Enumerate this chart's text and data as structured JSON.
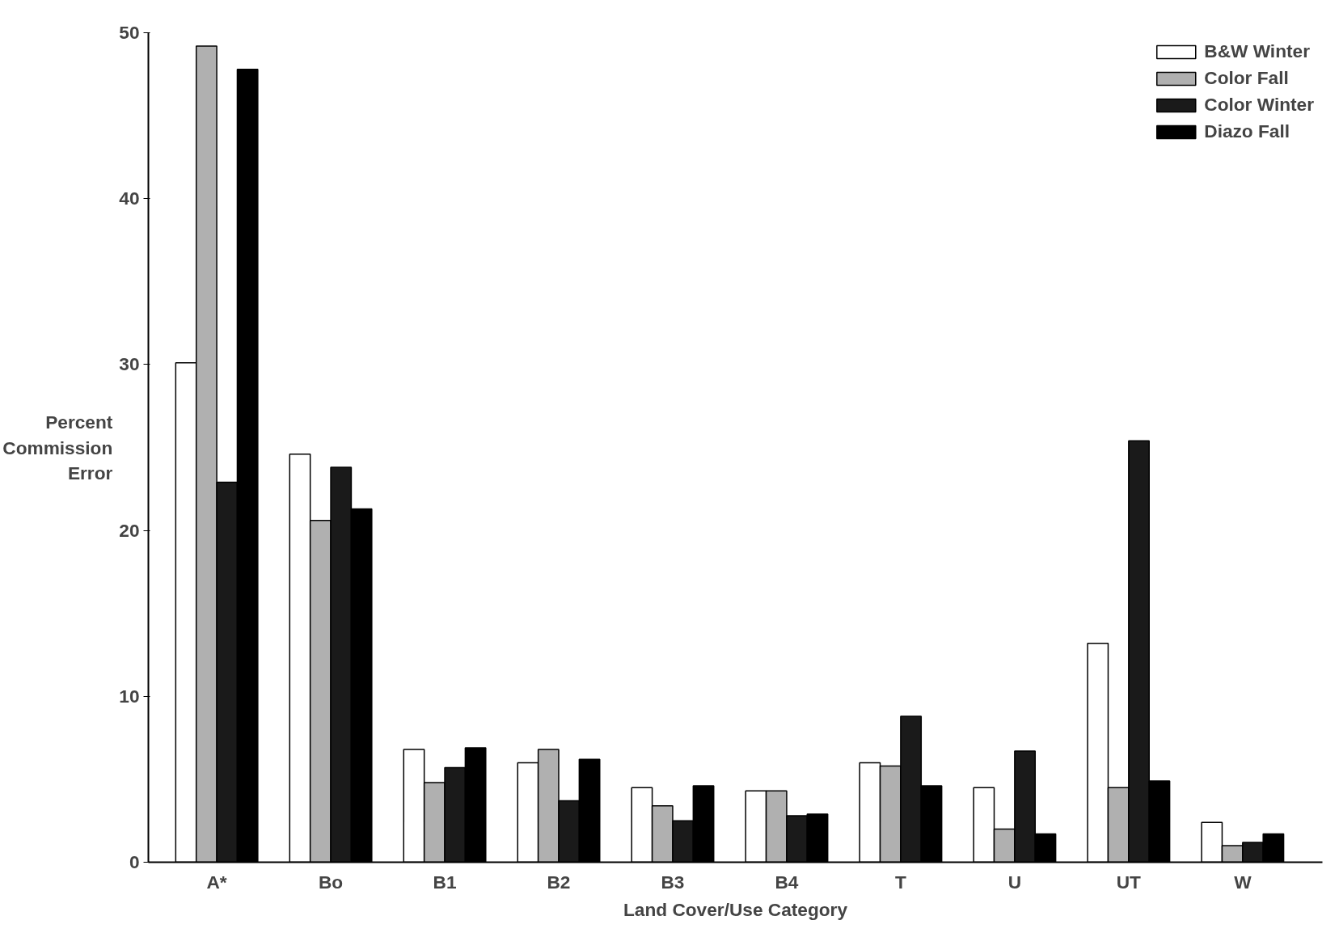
{
  "chart_data": {
    "type": "bar",
    "xlabel": "Land Cover/Use Category",
    "ylabel": "Percent Commission Error",
    "categories": [
      "A*",
      "Bo",
      "B1",
      "B2",
      "B3",
      "B4",
      "T",
      "U",
      "UT",
      "W"
    ],
    "series": [
      {
        "name": "B&W Winter",
        "color": "#ffffff",
        "values": [
          30.1,
          24.6,
          6.8,
          6.0,
          4.5,
          4.3,
          6.0,
          4.5,
          13.2,
          2.4
        ]
      },
      {
        "name": "Color Fall",
        "color": "#b0b0b0",
        "values": [
          49.2,
          20.6,
          4.8,
          6.8,
          3.4,
          4.3,
          5.8,
          2.0,
          4.5,
          1.0
        ]
      },
      {
        "name": "Color Winter",
        "color": "#1a1a1a",
        "values": [
          22.9,
          23.8,
          5.7,
          3.7,
          2.5,
          2.8,
          8.8,
          6.7,
          25.4,
          1.2
        ]
      },
      {
        "name": "Diazo Fall",
        "color": "#000000",
        "values": [
          47.8,
          21.3,
          6.9,
          6.2,
          4.6,
          2.9,
          4.6,
          1.7,
          4.9,
          1.7
        ]
      }
    ],
    "ylim": [
      0,
      50
    ],
    "yticks": [
      0,
      10,
      20,
      30,
      40,
      50
    ],
    "grid": false,
    "legend": "top right"
  }
}
